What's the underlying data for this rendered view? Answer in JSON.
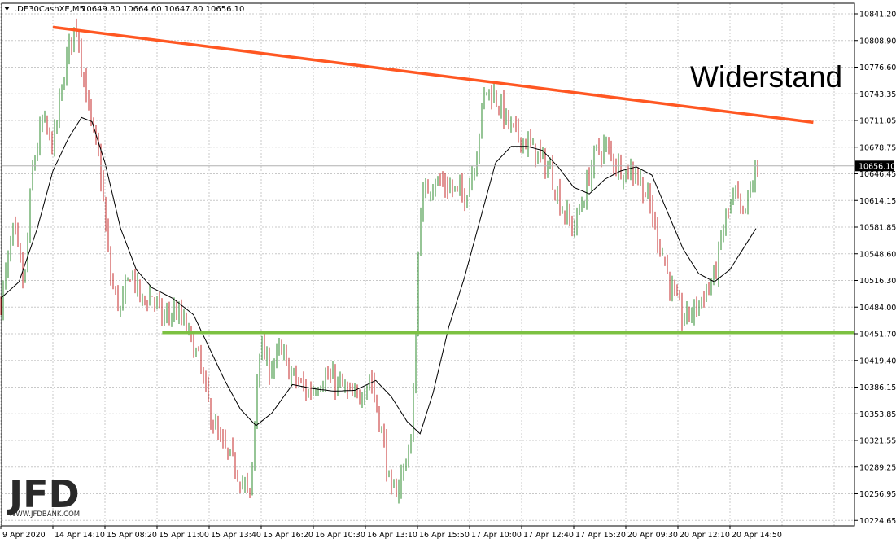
{
  "header": {
    "symbol": ".DE30CashXE,M5",
    "ohlc": "10649.80 10664.60 10647.80 10656.10"
  },
  "annotation": "Widerstand",
  "logo": {
    "text": "JFD",
    "url": "WWW.JFDBANK.COM"
  },
  "colors": {
    "up": "#2e8b2e",
    "down": "#c62828",
    "ma": "#000000",
    "resistance": "#ff5722",
    "support": "#7cc142",
    "grid": "#c8c8c8"
  },
  "chart_data": {
    "type": "candlestick",
    "symbol": ".DE30CashXE",
    "timeframe": "M5",
    "y_ticks": [
      "10841.20",
      "10808.90",
      "10776.60",
      "10743.35",
      "10711.05",
      "10678.75",
      "10646.45",
      "10614.15",
      "10581.85",
      "10548.60",
      "10516.30",
      "10484.00",
      "10451.70",
      "10419.40",
      "10386.15",
      "10353.85",
      "10321.55",
      "10289.25",
      "10256.95",
      "10224.65"
    ],
    "ylim": [
      10224.65,
      10841.2
    ],
    "x_ticks": [
      "9 Apr 2020",
      "14 Apr 14:10",
      "15 Apr 08:20",
      "15 Apr 11:00",
      "15 Apr 13:40",
      "15 Apr 16:20",
      "16 Apr 10:30",
      "16 Apr 13:10",
      "16 Apr 15:50",
      "17 Apr 10:00",
      "17 Apr 12:40",
      "17 Apr 15:20",
      "20 Apr 09:30",
      "20 Apr 12:10",
      "20 Apr 14:50"
    ],
    "current_price": "10656.10",
    "resistance_line": {
      "label": "Widerstand",
      "start": [
        1,
        10825
      ],
      "end": [
        15.6,
        10709
      ]
    },
    "support_line": {
      "level": 10453,
      "start_x": 3.1
    },
    "price_path": [
      [
        0,
        10490
      ],
      [
        0.25,
        10580
      ],
      [
        0.45,
        10505
      ],
      [
        0.6,
        10650
      ],
      [
        0.8,
        10710
      ],
      [
        1.0,
        10680
      ],
      [
        1.3,
        10800
      ],
      [
        1.45,
        10830
      ],
      [
        1.6,
        10760
      ],
      [
        1.75,
        10700
      ],
      [
        1.9,
        10660
      ],
      [
        2.1,
        10520
      ],
      [
        2.3,
        10480
      ],
      [
        2.5,
        10530
      ],
      [
        2.7,
        10490
      ],
      [
        2.9,
        10500
      ],
      [
        3.1,
        10470
      ],
      [
        3.35,
        10480
      ],
      [
        3.55,
        10460
      ],
      [
        3.8,
        10420
      ],
      [
        4.0,
        10360
      ],
      [
        4.2,
        10320
      ],
      [
        4.5,
        10290
      ],
      [
        4.8,
        10250
      ],
      [
        4.95,
        10440
      ],
      [
        5.15,
        10410
      ],
      [
        5.35,
        10430
      ],
      [
        5.6,
        10400
      ],
      [
        5.9,
        10380
      ],
      [
        6.2,
        10400
      ],
      [
        6.5,
        10390
      ],
      [
        6.8,
        10370
      ],
      [
        7.1,
        10400
      ],
      [
        7.35,
        10320
      ],
      [
        7.5,
        10250
      ],
      [
        7.7,
        10280
      ],
      [
        7.9,
        10330
      ],
      [
        8.05,
        10610
      ],
      [
        8.3,
        10640
      ],
      [
        8.6,
        10630
      ],
      [
        8.9,
        10620
      ],
      [
        9.1,
        10660
      ],
      [
        9.3,
        10750
      ],
      [
        9.5,
        10740
      ],
      [
        9.8,
        10700
      ],
      [
        10.0,
        10690
      ],
      [
        10.3,
        10670
      ],
      [
        10.55,
        10650
      ],
      [
        10.8,
        10600
      ],
      [
        11.0,
        10580
      ],
      [
        11.2,
        10620
      ],
      [
        11.4,
        10670
      ],
      [
        11.6,
        10680
      ],
      [
        11.8,
        10660
      ],
      [
        12.0,
        10650
      ],
      [
        12.2,
        10650
      ],
      [
        12.45,
        10610
      ],
      [
        12.7,
        10550
      ],
      [
        12.9,
        10500
      ],
      [
        13.1,
        10470
      ],
      [
        13.3,
        10480
      ],
      [
        13.5,
        10500
      ],
      [
        13.7,
        10520
      ],
      [
        13.9,
        10590
      ],
      [
        14.1,
        10620
      ],
      [
        14.25,
        10590
      ],
      [
        14.4,
        10630
      ],
      [
        14.55,
        10656
      ]
    ],
    "ma_path": [
      [
        0,
        10495
      ],
      [
        0.35,
        10515
      ],
      [
        0.7,
        10580
      ],
      [
        1.0,
        10650
      ],
      [
        1.3,
        10690
      ],
      [
        1.55,
        10715
      ],
      [
        1.75,
        10710
      ],
      [
        2.0,
        10660
      ],
      [
        2.3,
        10580
      ],
      [
        2.6,
        10530
      ],
      [
        2.9,
        10508
      ],
      [
        3.3,
        10495
      ],
      [
        3.7,
        10475
      ],
      [
        4.0,
        10435
      ],
      [
        4.3,
        10395
      ],
      [
        4.6,
        10360
      ],
      [
        4.9,
        10340
      ],
      [
        5.2,
        10355
      ],
      [
        5.6,
        10390
      ],
      [
        6.0,
        10385
      ],
      [
        6.4,
        10382
      ],
      [
        6.8,
        10383
      ],
      [
        7.2,
        10395
      ],
      [
        7.5,
        10375
      ],
      [
        7.8,
        10345
      ],
      [
        8.05,
        10330
      ],
      [
        8.3,
        10380
      ],
      [
        8.6,
        10460
      ],
      [
        8.9,
        10520
      ],
      [
        9.2,
        10590
      ],
      [
        9.5,
        10660
      ],
      [
        9.8,
        10680
      ],
      [
        10.1,
        10680
      ],
      [
        10.4,
        10675
      ],
      [
        10.7,
        10655
      ],
      [
        11.0,
        10630
      ],
      [
        11.3,
        10622
      ],
      [
        11.6,
        10640
      ],
      [
        11.9,
        10650
      ],
      [
        12.2,
        10655
      ],
      [
        12.5,
        10645
      ],
      [
        12.8,
        10600
      ],
      [
        13.1,
        10555
      ],
      [
        13.4,
        10525
      ],
      [
        13.7,
        10515
      ],
      [
        14.0,
        10530
      ],
      [
        14.3,
        10560
      ],
      [
        14.55,
        10585
      ]
    ]
  }
}
